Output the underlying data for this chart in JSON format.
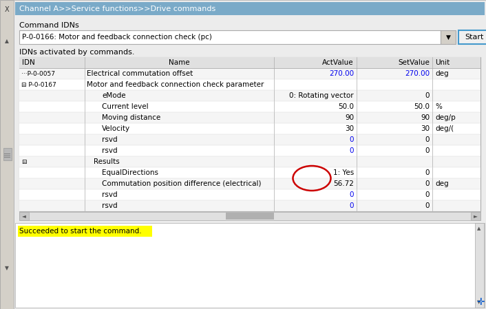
{
  "title_bar": "Channel A>>Service functions>>Drive commands",
  "title_bar_color": "#7aaac8",
  "title_bar_text_color": "#ffffff",
  "bg_color": "#e8e8e8",
  "panel_bg": "#ececec",
  "command_idns_label": "Command IDNs",
  "dropdown_text": "P-0-0166: Motor and feedback connection check (pc)",
  "start_button": "Start",
  "table_header_label": "IDNs activated by commands.",
  "table_cols": [
    "IDN",
    "Name",
    "ActValue",
    "SetValue",
    "Unit"
  ],
  "table_rows": [
    {
      "idn": "···P-0-0057",
      "name": "Electrical commutation offset",
      "actvalue": "270.00",
      "setvalue": "270.00",
      "unit": "deg",
      "indent": 0,
      "act_blue": true,
      "set_blue": true,
      "circle": false
    },
    {
      "idn": "⊟ P-0-0167",
      "name": "Motor and feedback connection check parameter",
      "actvalue": "",
      "setvalue": "",
      "unit": "",
      "indent": 0,
      "act_blue": false,
      "set_blue": false,
      "circle": false
    },
    {
      "idn": "",
      "name": "eMode",
      "actvalue": "0: Rotating vector",
      "setvalue": "0",
      "unit": "",
      "indent": 2,
      "act_blue": false,
      "set_blue": false,
      "circle": false
    },
    {
      "idn": "",
      "name": "Current level",
      "actvalue": "50.0",
      "setvalue": "50.0",
      "unit": "%",
      "indent": 2,
      "act_blue": false,
      "set_blue": false,
      "circle": false
    },
    {
      "idn": "",
      "name": "Moving distance",
      "actvalue": "90",
      "setvalue": "90",
      "unit": "deg/p",
      "indent": 2,
      "act_blue": false,
      "set_blue": false,
      "circle": false
    },
    {
      "idn": "",
      "name": "Velocity",
      "actvalue": "30",
      "setvalue": "30",
      "unit": "deg/(",
      "indent": 2,
      "act_blue": false,
      "set_blue": false,
      "circle": false
    },
    {
      "idn": "",
      "name": "rsvd",
      "actvalue": "0",
      "setvalue": "0",
      "unit": "",
      "indent": 2,
      "act_blue": true,
      "set_blue": false,
      "circle": false
    },
    {
      "idn": "",
      "name": "rsvd",
      "actvalue": "0",
      "setvalue": "0",
      "unit": "",
      "indent": 2,
      "act_blue": true,
      "set_blue": false,
      "circle": false
    },
    {
      "idn": "⊟",
      "name": "Results",
      "actvalue": "",
      "setvalue": "",
      "unit": "",
      "indent": 1,
      "act_blue": false,
      "set_blue": false,
      "circle": false
    },
    {
      "idn": "",
      "name": "EqualDirections",
      "actvalue": "1: Yes",
      "setvalue": "0",
      "unit": "",
      "indent": 2,
      "act_blue": false,
      "set_blue": false,
      "circle": true
    },
    {
      "idn": "",
      "name": "Commutation position difference (electrical)",
      "actvalue": "56.72",
      "setvalue": "0",
      "unit": "deg",
      "indent": 2,
      "act_blue": false,
      "set_blue": false,
      "circle": true
    },
    {
      "idn": "",
      "name": "rsvd",
      "actvalue": "0",
      "setvalue": "0",
      "unit": "",
      "indent": 2,
      "act_blue": true,
      "set_blue": false,
      "circle": false
    },
    {
      "idn": "",
      "name": "rsvd",
      "actvalue": "0",
      "setvalue": "0",
      "unit": "",
      "indent": 2,
      "act_blue": true,
      "set_blue": false,
      "circle": false
    }
  ],
  "status_text": "Succeeded to start the command.",
  "status_bg": "#ffff00",
  "highlight_circle_color": "#cc0000",
  "border_color": "#aaaaaa",
  "text_color": "#000000",
  "blue_text": "#0000ee",
  "header_bg": "#e0e0e0",
  "row_bg_even": "#f5f5f5",
  "row_bg_odd": "#ffffff"
}
